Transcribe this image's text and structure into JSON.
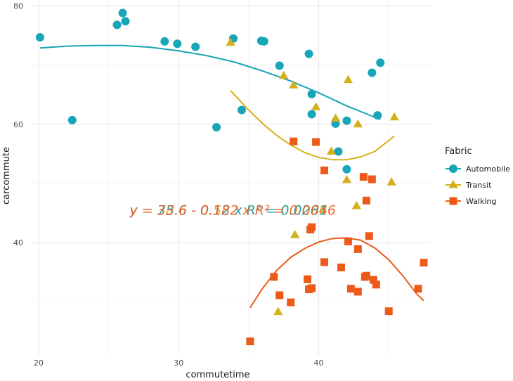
{
  "chart_data": {
    "type": "scatter",
    "xlabel": "commutetime",
    "ylabel": "carcommute",
    "xlim": [
      19.5,
      48.0
    ],
    "ylim": [
      21.0,
      81.0
    ],
    "x_ticks": [
      20,
      30,
      40
    ],
    "y_ticks": [
      40,
      60,
      80
    ],
    "grid": true,
    "legend": {
      "title": "Fabric",
      "position": "right"
    },
    "series": [
      {
        "name": "Automobile",
        "color": "#17a5b8",
        "marker": "circle",
        "points": [
          [
            20.1,
            74.7
          ],
          [
            22.4,
            60.7
          ],
          [
            25.6,
            76.8
          ],
          [
            26.0,
            78.8
          ],
          [
            26.2,
            77.4
          ],
          [
            29.0,
            74.0
          ],
          [
            29.9,
            73.6
          ],
          [
            31.2,
            73.1
          ],
          [
            32.7,
            59.5
          ],
          [
            33.9,
            74.5
          ],
          [
            34.5,
            62.4
          ],
          [
            35.9,
            74.1
          ],
          [
            36.1,
            74.0
          ],
          [
            37.2,
            69.9
          ],
          [
            39.3,
            71.9
          ],
          [
            39.5,
            65.1
          ],
          [
            39.5,
            61.7
          ],
          [
            41.2,
            60.1
          ],
          [
            41.4,
            55.4
          ],
          [
            42.0,
            60.6
          ],
          [
            42.0,
            52.4
          ],
          [
            43.8,
            68.7
          ],
          [
            44.2,
            61.5
          ],
          [
            44.4,
            70.4
          ]
        ],
        "fit": [
          [
            20.1,
            72.9
          ],
          [
            22.0,
            73.2
          ],
          [
            24.0,
            73.3
          ],
          [
            26.0,
            73.3
          ],
          [
            28.0,
            73.0
          ],
          [
            30.0,
            72.4
          ],
          [
            32.0,
            71.6
          ],
          [
            34.0,
            70.5
          ],
          [
            36.0,
            69.0
          ],
          [
            38.0,
            67.3
          ],
          [
            40.0,
            65.3
          ],
          [
            42.0,
            63.1
          ],
          [
            44.4,
            60.8
          ]
        ]
      },
      {
        "name": "Transit",
        "color": "#d6b01c",
        "marker": "triangle",
        "points": [
          [
            33.7,
            73.8
          ],
          [
            37.5,
            68.2
          ],
          [
            38.2,
            66.6
          ],
          [
            38.3,
            41.3
          ],
          [
            37.1,
            28.3
          ],
          [
            39.8,
            62.9
          ],
          [
            40.9,
            55.4
          ],
          [
            41.2,
            61.0
          ],
          [
            42.0,
            50.6
          ],
          [
            42.1,
            67.5
          ],
          [
            42.7,
            46.2
          ],
          [
            42.8,
            60.0
          ],
          [
            45.2,
            50.2
          ],
          [
            45.4,
            61.2
          ]
        ],
        "fit": [
          [
            33.7,
            65.7
          ],
          [
            35.0,
            62.4
          ],
          [
            36.0,
            60.1
          ],
          [
            37.0,
            58.1
          ],
          [
            38.0,
            56.5
          ],
          [
            39.0,
            55.2
          ],
          [
            40.0,
            54.4
          ],
          [
            41.0,
            54.0
          ],
          [
            42.0,
            54.0
          ],
          [
            43.0,
            54.5
          ],
          [
            44.0,
            55.4
          ],
          [
            45.4,
            58.0
          ]
        ]
      },
      {
        "name": "Walking",
        "color": "#ec5a1a",
        "marker": "square",
        "points": [
          [
            35.1,
            23.3
          ],
          [
            36.8,
            34.2
          ],
          [
            37.2,
            31.1
          ],
          [
            38.0,
            29.9
          ],
          [
            38.2,
            57.1
          ],
          [
            39.2,
            33.8
          ],
          [
            39.3,
            32.1
          ],
          [
            39.4,
            42.2
          ],
          [
            39.5,
            42.6
          ],
          [
            39.5,
            32.3
          ],
          [
            39.8,
            57.0
          ],
          [
            40.4,
            52.2
          ],
          [
            40.4,
            36.7
          ],
          [
            41.6,
            35.8
          ],
          [
            42.1,
            40.2
          ],
          [
            42.3,
            32.2
          ],
          [
            42.8,
            31.7
          ],
          [
            42.8,
            38.9
          ],
          [
            43.2,
            51.1
          ],
          [
            43.3,
            34.2
          ],
          [
            43.4,
            34.4
          ],
          [
            43.4,
            47.1
          ],
          [
            43.6,
            41.1
          ],
          [
            43.8,
            50.7
          ],
          [
            43.9,
            33.7
          ],
          [
            44.1,
            32.9
          ],
          [
            45.0,
            28.4
          ],
          [
            47.1,
            32.2
          ],
          [
            47.5,
            36.6
          ]
        ],
        "fit": [
          [
            35.1,
            29.0
          ],
          [
            36.0,
            32.3
          ],
          [
            37.0,
            35.3
          ],
          [
            38.0,
            37.5
          ],
          [
            39.0,
            39.0
          ],
          [
            40.0,
            40.1
          ],
          [
            41.0,
            40.7
          ],
          [
            42.0,
            40.8
          ],
          [
            43.0,
            40.4
          ],
          [
            44.0,
            39.1
          ],
          [
            45.0,
            37.1
          ],
          [
            46.0,
            34.4
          ],
          [
            47.0,
            31.3
          ],
          [
            47.5,
            30.2
          ]
        ]
      }
    ],
    "annotations": [
      {
        "text": "y = 38.6 - 0.52 x  R² = 0.0086",
        "color": "#d6b01c",
        "x": 26.5,
        "y": 44.7
      },
      {
        "text": "y = 75.6 - 0.12 x  R² = 0.0261",
        "color": "#17a5b8",
        "x": 26.5,
        "y": 44.7
      },
      {
        "text": "y = 33.6 - 0.182 x  R² = 0.0046",
        "color": "#ec5a1a",
        "x": 26.5,
        "y": 44.7
      }
    ]
  }
}
